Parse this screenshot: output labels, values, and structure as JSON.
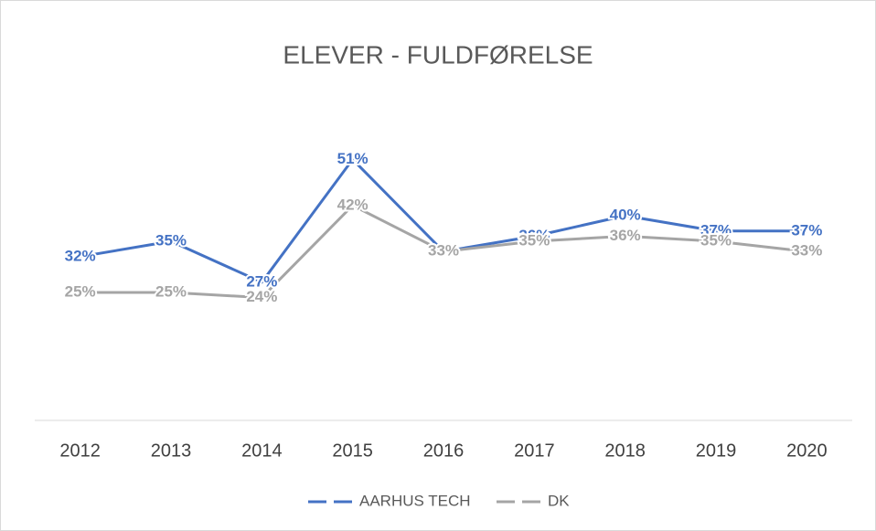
{
  "chart_data": {
    "type": "line",
    "title": "ELEVER - FULDFØRELSE",
    "categories": [
      "2012",
      "2013",
      "2014",
      "2015",
      "2016",
      "2017",
      "2018",
      "2019",
      "2020"
    ],
    "series": [
      {
        "name": "AARHUS TECH",
        "color": "#4472c4",
        "values": [
          32,
          35,
          27,
          51,
          33,
          36,
          40,
          37,
          37
        ],
        "value_labels": [
          "32%",
          "35%",
          "27%",
          "51%",
          "33%",
          "36%",
          "40%",
          "37%",
          "37%"
        ]
      },
      {
        "name": "DK",
        "color": "#a5a5a5",
        "values": [
          25,
          25,
          24,
          42,
          33,
          35,
          36,
          35,
          33
        ],
        "value_labels": [
          "25%",
          "25%",
          "24%",
          "42%",
          "33%",
          "35%",
          "36%",
          "35%",
          "33%"
        ]
      }
    ],
    "ylim": [
      0,
      60
    ],
    "legend": "bottom"
  }
}
